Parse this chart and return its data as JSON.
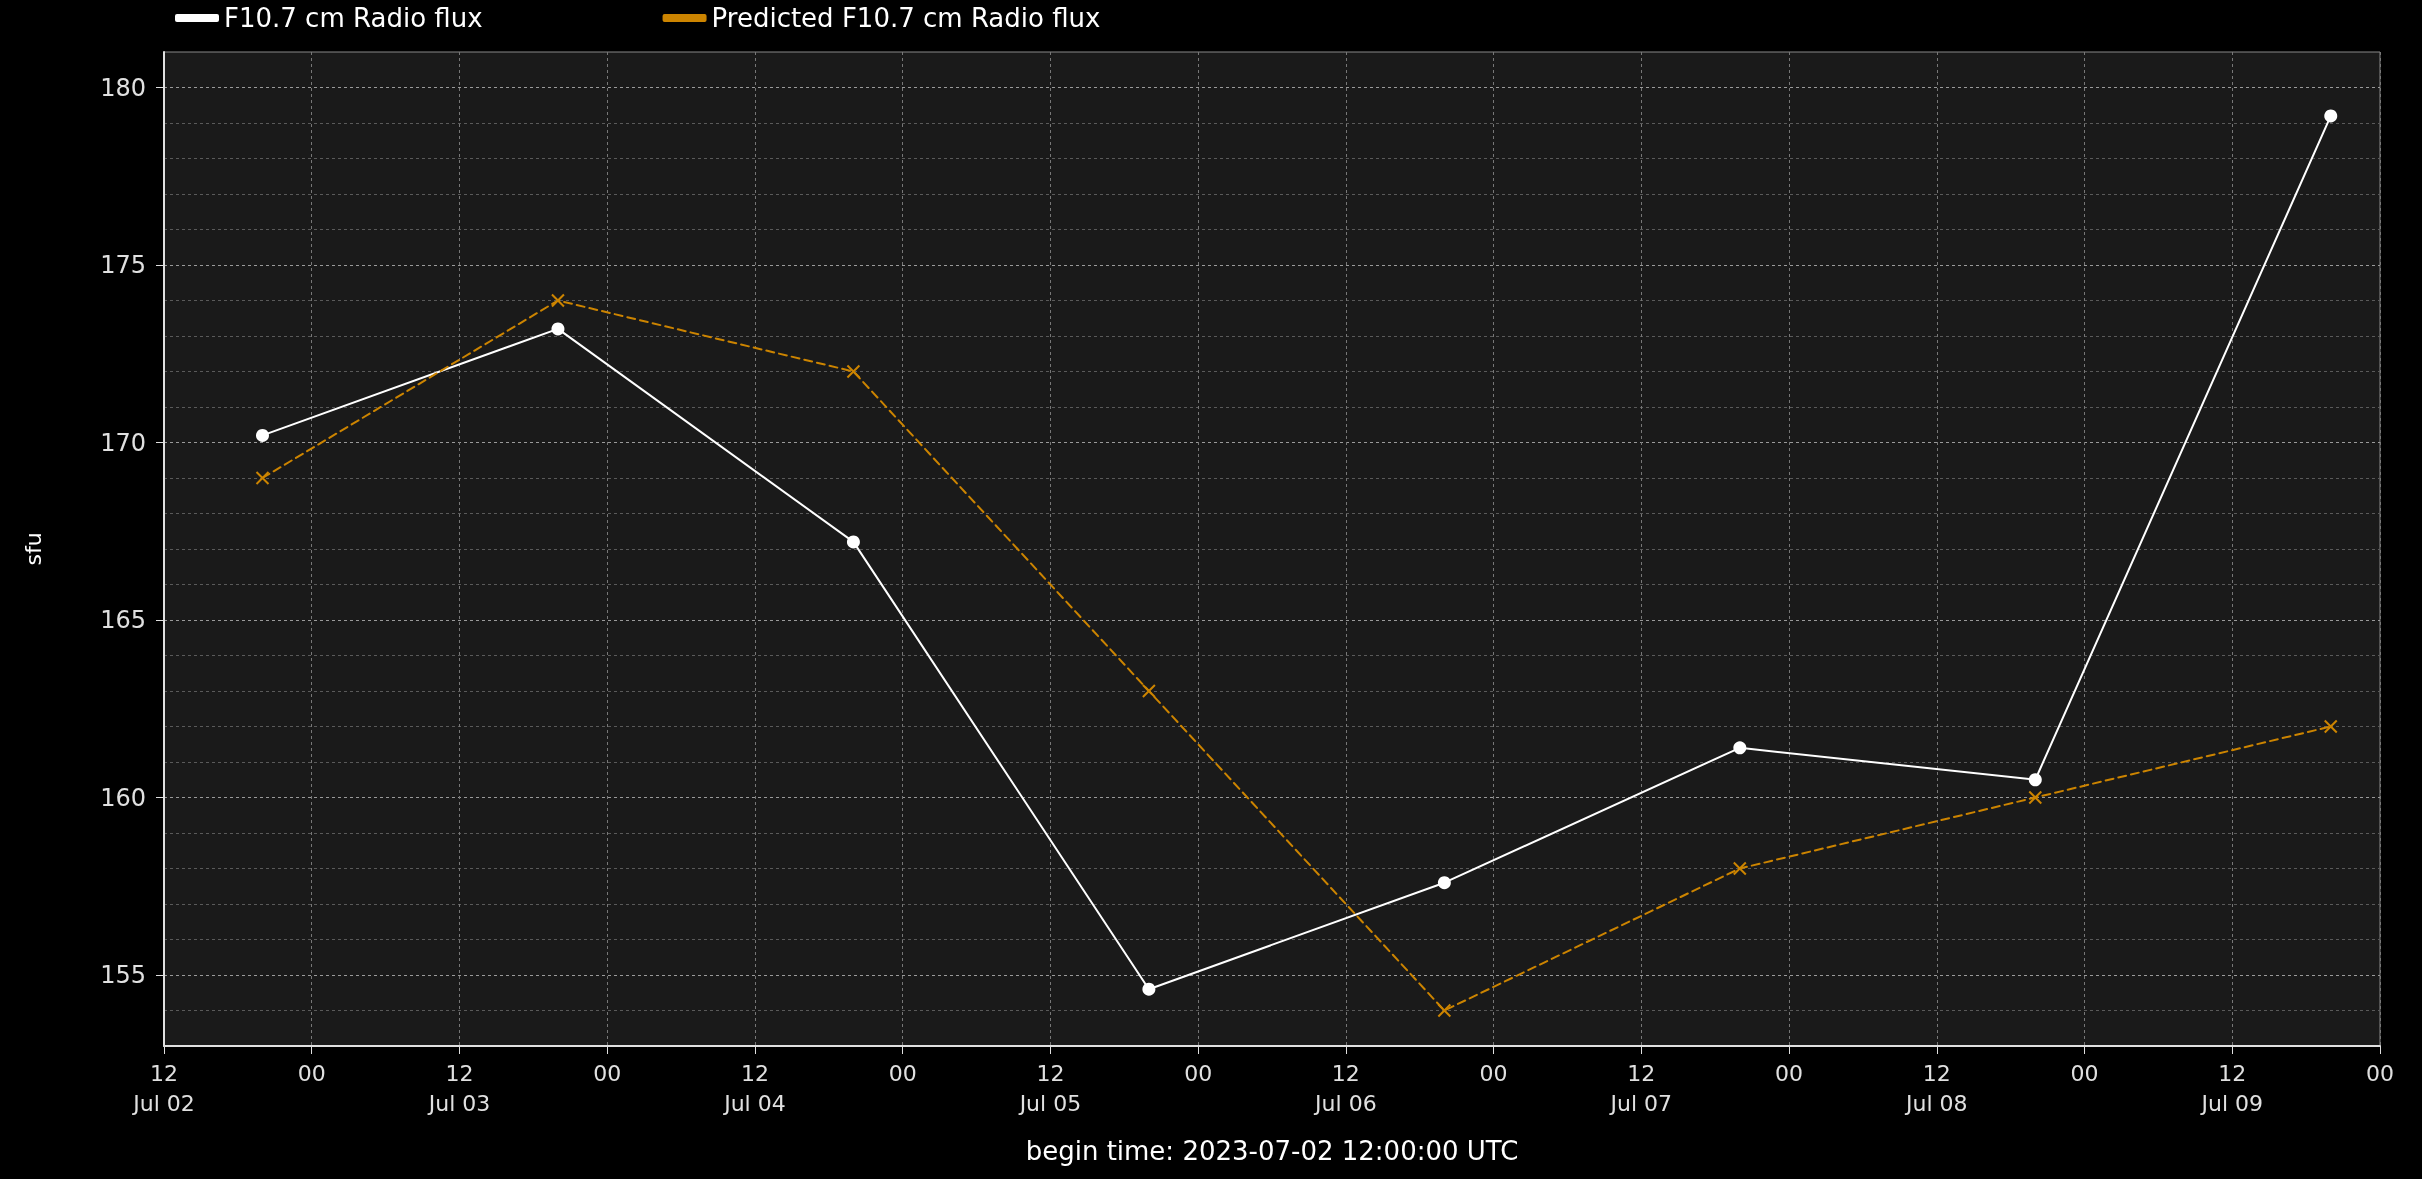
{
  "chart_data": {
    "type": "line",
    "xlabel": "begin time: 2023-07-02 12:00:00 UTC",
    "ylabel": "sfu",
    "x": [
      "2023-07-02T20:00",
      "2023-07-03T20:00",
      "2023-07-04T20:00",
      "2023-07-05T20:00",
      "2023-07-06T20:00",
      "2023-07-07T20:00",
      "2023-07-08T20:00",
      "2023-07-09T20:00"
    ],
    "series": [
      {
        "name": "F10.7 cm Radio flux",
        "color": "#ffffff",
        "marker": "circle",
        "line_style": "solid",
        "values": [
          170.2,
          173.2,
          167.2,
          154.6,
          157.6,
          161.4,
          160.5,
          179.2
        ]
      },
      {
        "name": "Predicted F10.7 cm Radio flux",
        "color": "#cc8400",
        "marker": "cross",
        "line_style": "dashed",
        "values": [
          169,
          174,
          172,
          163,
          154,
          158,
          160,
          162
        ]
      }
    ],
    "xlim": [
      "2023-07-02T12:00",
      "2023-07-10T00:00"
    ],
    "xticks": [
      {
        "value": "2023-07-02T12:00",
        "label": "12\nJul 02"
      },
      {
        "value": "2023-07-03T00:00",
        "label": "00"
      },
      {
        "value": "2023-07-03T12:00",
        "label": "12\nJul 03"
      },
      {
        "value": "2023-07-04T00:00",
        "label": "00"
      },
      {
        "value": "2023-07-04T12:00",
        "label": "12\nJul 04"
      },
      {
        "value": "2023-07-05T00:00",
        "label": "00"
      },
      {
        "value": "2023-07-05T12:00",
        "label": "12\nJul 05"
      },
      {
        "value": "2023-07-06T00:00",
        "label": "00"
      },
      {
        "value": "2023-07-06T12:00",
        "label": "12\nJul 06"
      },
      {
        "value": "2023-07-07T00:00",
        "label": "00"
      },
      {
        "value": "2023-07-07T12:00",
        "label": "12\nJul 07"
      },
      {
        "value": "2023-07-08T00:00",
        "label": "00"
      },
      {
        "value": "2023-07-08T12:00",
        "label": "12\nJul 08"
      },
      {
        "value": "2023-07-09T00:00",
        "label": "00"
      },
      {
        "value": "2023-07-09T12:00",
        "label": "12\nJul 09"
      },
      {
        "value": "2023-07-10T00:00",
        "label": "00"
      }
    ],
    "ylim": [
      153,
      181
    ],
    "yticks": [
      155,
      160,
      165,
      170,
      175,
      180
    ],
    "grid": true,
    "legend": "top"
  }
}
